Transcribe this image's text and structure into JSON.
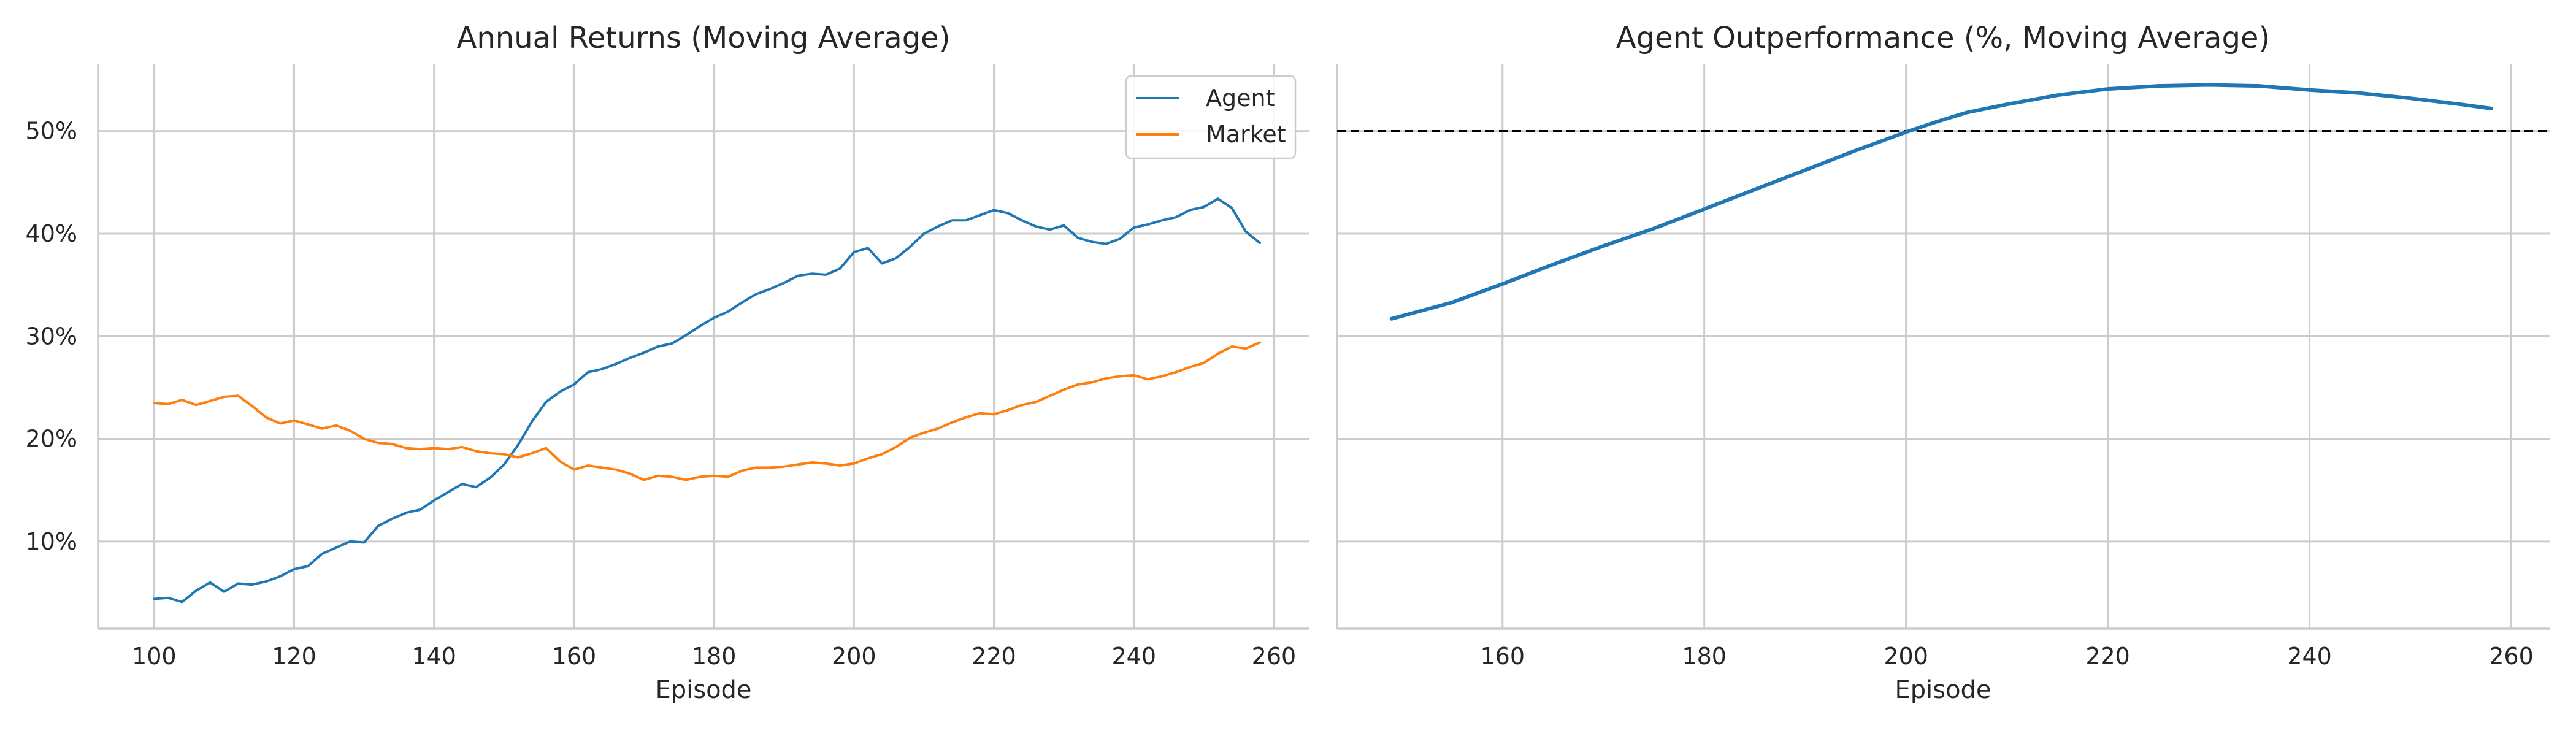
{
  "chart_data": [
    {
      "type": "line",
      "title": "Annual Returns (Moving Average)",
      "xlabel": "Episode",
      "ylabel": "",
      "xlim": [
        92,
        265
      ],
      "ylim": [
        1.5,
        56.5
      ],
      "x_ticks": [
        100,
        120,
        140,
        160,
        180,
        200,
        220,
        240,
        260
      ],
      "y_ticks": [
        10,
        20,
        30,
        40,
        50
      ],
      "y_tick_format": "percent",
      "grid": true,
      "legend": "top-right",
      "series": [
        {
          "name": "Agent",
          "color": "#1f77b4",
          "x": [
            100,
            102,
            104,
            106,
            108,
            110,
            112,
            114,
            116,
            118,
            120,
            122,
            124,
            126,
            128,
            130,
            132,
            134,
            136,
            138,
            140,
            142,
            144,
            146,
            148,
            150,
            152,
            154,
            156,
            158,
            160,
            162,
            164,
            166,
            168,
            170,
            172,
            174,
            176,
            178,
            180,
            182,
            184,
            186,
            188,
            190,
            192,
            194,
            196,
            198,
            200,
            202,
            204,
            206,
            208,
            210,
            212,
            214,
            216,
            218,
            220,
            222,
            224,
            226,
            228,
            230,
            232,
            234,
            236,
            238,
            240,
            242,
            244,
            246,
            248,
            250,
            252,
            254,
            256,
            258
          ],
          "values": [
            4.4,
            4.5,
            4.1,
            5.2,
            6.0,
            5.1,
            5.9,
            5.8,
            6.1,
            6.6,
            7.3,
            7.6,
            8.8,
            9.4,
            10.0,
            9.9,
            11.5,
            12.2,
            12.8,
            13.1,
            14.0,
            14.8,
            15.6,
            15.3,
            16.2,
            17.5,
            19.4,
            21.7,
            23.6,
            24.6,
            25.3,
            26.5,
            26.8,
            27.3,
            27.9,
            28.4,
            29.0,
            29.3,
            30.1,
            31.0,
            31.8,
            32.4,
            33.3,
            34.1,
            34.6,
            35.2,
            35.9,
            36.1,
            36.0,
            36.6,
            38.2,
            38.6,
            37.1,
            37.6,
            38.7,
            40.0,
            40.7,
            41.3,
            41.3,
            41.8,
            42.3,
            42.0,
            41.3,
            40.7,
            40.4,
            40.8,
            39.6,
            39.2,
            39.0,
            39.5,
            40.6,
            40.9,
            41.3,
            41.6,
            42.3,
            42.6,
            43.4,
            42.5,
            40.2,
            39.1
          ]
        },
        {
          "name": "Market",
          "color": "#ff7f0e",
          "x": [
            100,
            102,
            104,
            106,
            108,
            110,
            112,
            114,
            116,
            118,
            120,
            122,
            124,
            126,
            128,
            130,
            132,
            134,
            136,
            138,
            140,
            142,
            144,
            146,
            148,
            150,
            152,
            154,
            156,
            158,
            160,
            162,
            164,
            166,
            168,
            170,
            172,
            174,
            176,
            178,
            180,
            182,
            184,
            186,
            188,
            190,
            192,
            194,
            196,
            198,
            200,
            202,
            204,
            206,
            208,
            210,
            212,
            214,
            216,
            218,
            220,
            222,
            224,
            226,
            228,
            230,
            232,
            234,
            236,
            238,
            240,
            242,
            244,
            246,
            248,
            250,
            252,
            254,
            256,
            258
          ],
          "values": [
            23.5,
            23.4,
            23.8,
            23.3,
            23.7,
            24.1,
            24.2,
            23.2,
            22.1,
            21.5,
            21.8,
            21.4,
            21.0,
            21.3,
            20.8,
            20.0,
            19.6,
            19.5,
            19.1,
            19.0,
            19.1,
            19.0,
            19.2,
            18.8,
            18.6,
            18.5,
            18.2,
            18.6,
            19.1,
            17.8,
            17.0,
            17.4,
            17.2,
            17.0,
            16.6,
            16.0,
            16.4,
            16.3,
            16.0,
            16.3,
            16.4,
            16.3,
            16.9,
            17.2,
            17.2,
            17.3,
            17.5,
            17.7,
            17.6,
            17.4,
            17.6,
            18.1,
            18.5,
            19.2,
            20.1,
            20.6,
            21.0,
            21.6,
            22.1,
            22.5,
            22.4,
            22.8,
            23.3,
            23.6,
            24.2,
            24.8,
            25.3,
            25.5,
            25.9,
            26.1,
            26.2,
            25.8,
            26.1,
            26.5,
            27.0,
            27.4,
            28.3,
            29.0,
            28.8,
            29.4
          ]
        }
      ]
    },
    {
      "type": "line",
      "title": "Agent Outperformance (%, Moving Average)",
      "xlabel": "Episode",
      "ylabel": "",
      "xlim": [
        143.6,
        263.8
      ],
      "ylim": [
        1.5,
        56.5
      ],
      "x_ticks": [
        160,
        180,
        200,
        220,
        240,
        260
      ],
      "grid": true,
      "reference_line": {
        "y": 50,
        "style": "dashed",
        "color": "#000000"
      },
      "series": [
        {
          "color": "#1f77b4",
          "x": [
            149,
            155,
            160,
            165,
            170,
            175,
            180,
            185,
            190,
            195,
            200,
            203,
            206,
            210,
            215,
            220,
            225,
            230,
            235,
            240,
            245,
            250,
            255,
            258
          ],
          "values": [
            31.7,
            33.3,
            35.1,
            37.0,
            38.8,
            40.5,
            42.4,
            44.3,
            46.2,
            48.1,
            49.9,
            50.9,
            51.8,
            52.6,
            53.5,
            54.1,
            54.4,
            54.5,
            54.4,
            54.0,
            53.7,
            53.2,
            52.6,
            52.2
          ]
        }
      ]
    }
  ]
}
